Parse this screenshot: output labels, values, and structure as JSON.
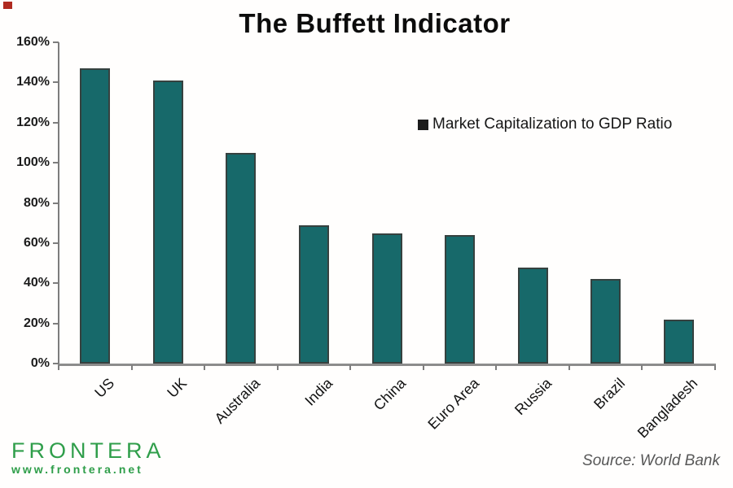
{
  "title": "The Buffett Indicator",
  "legend": {
    "label": "Market Capitalization to GDP Ratio",
    "marker_color": "#1c1c1c"
  },
  "chart_data": {
    "type": "bar",
    "title": "The Buffett Indicator",
    "categories": [
      "US",
      "UK",
      "Australia",
      "India",
      "China",
      "Euro Area",
      "Russia",
      "Brazil",
      "Bangladesh"
    ],
    "values": [
      147,
      141,
      105,
      69,
      65,
      64,
      48,
      42,
      22
    ],
    "series": [
      {
        "name": "Market Capitalization to GDP Ratio",
        "values": [
          147,
          141,
          105,
          69,
          65,
          64,
          48,
          42,
          22
        ]
      }
    ],
    "xlabel": "",
    "ylabel": "",
    "ylim": [
      0,
      160
    ],
    "ytick_step": 20,
    "ytick_labels": [
      "0%",
      "20%",
      "40%",
      "60%",
      "80%",
      "100%",
      "120%",
      "140%",
      "160%"
    ],
    "grid": false,
    "legend_position": "inside-top-right",
    "bar_color": "#17696a",
    "bar_border_color": "#36413f",
    "axis_color": "#7d7d7d"
  },
  "footer": {
    "logo_text": "FRONTERA",
    "logo_url": "www.frontera.net",
    "logo_color": "#2f9e4a",
    "source_text": "Source: World Bank"
  }
}
